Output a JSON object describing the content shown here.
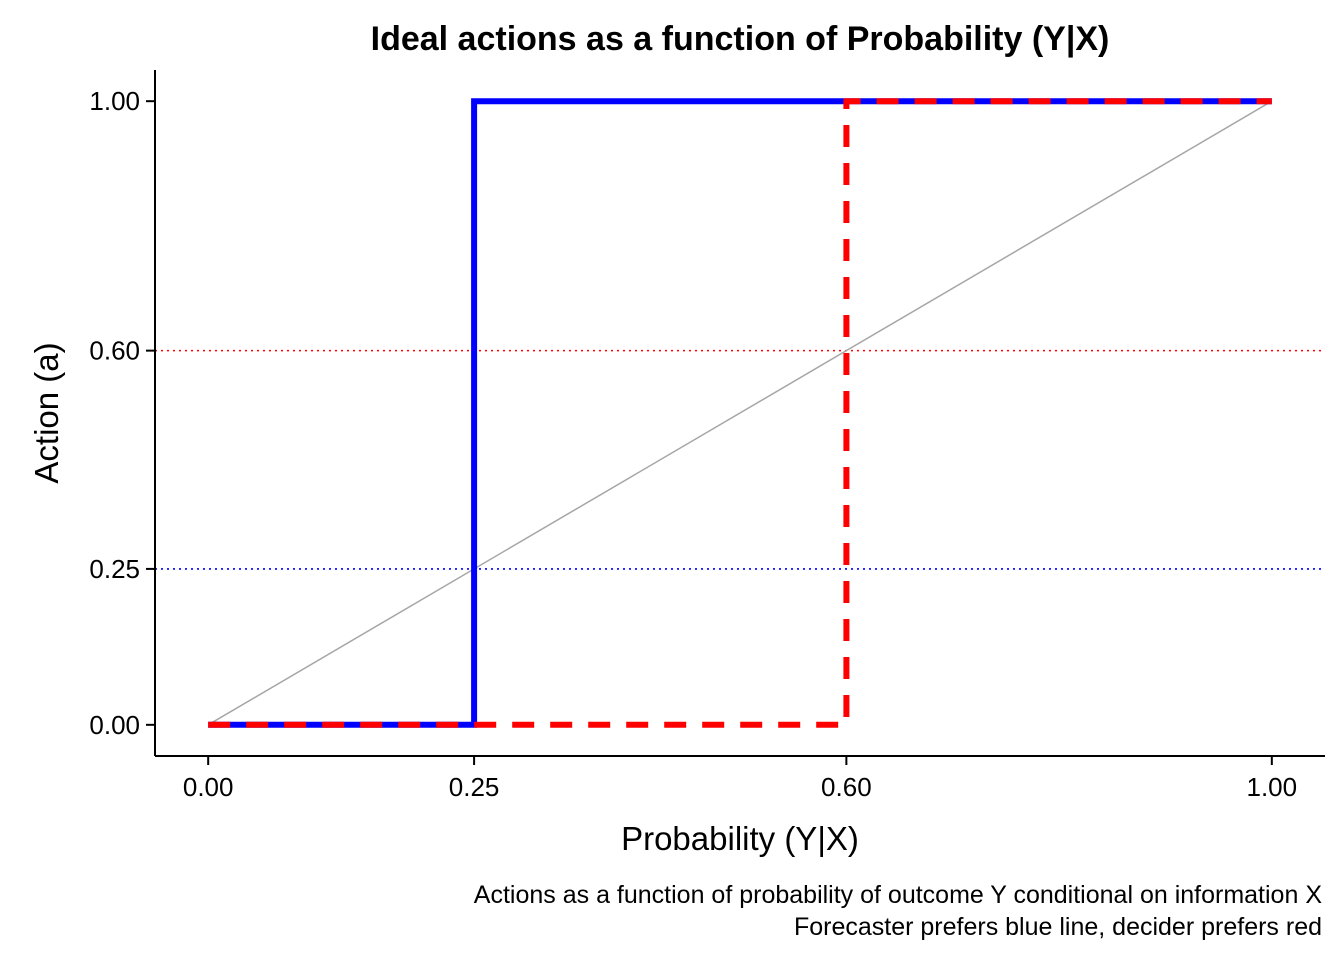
{
  "chart_data": {
    "type": "line",
    "title": "Ideal actions as a function of Probability (Y|X)",
    "xlabel": "Probability (Y|X)",
    "ylabel": "Action (a)",
    "caption_lines": [
      "Actions as a function of probability of outcome Y conditional on information X",
      "Forecaster prefers blue line, decider prefers red"
    ],
    "xlim": [
      -0.05,
      1.05
    ],
    "ylim": [
      -0.05,
      1.05
    ],
    "x_ticks": [
      0.0,
      0.25,
      0.6,
      1.0
    ],
    "x_tick_labels": [
      "0.00",
      "0.25",
      "0.60",
      "1.00"
    ],
    "y_ticks": [
      0.0,
      0.25,
      0.6,
      1.0
    ],
    "y_tick_labels": [
      "0.00",
      "0.25",
      "0.60",
      "1.00"
    ],
    "grid": false,
    "reference_lines": [
      {
        "orientation": "horizontal",
        "y": 0.6,
        "color": "#ff0000",
        "style": "dotted"
      },
      {
        "orientation": "horizontal",
        "y": 0.25,
        "color": "#0000ff",
        "style": "dotted"
      }
    ],
    "series": [
      {
        "id": "identity",
        "color": "#a6a6a6",
        "style": "solid",
        "x": [
          0.0,
          1.0
        ],
        "y": [
          0.0,
          1.0
        ]
      },
      {
        "id": "forecaster",
        "color": "#0000ff",
        "style": "solid",
        "x": [
          0.0,
          0.25,
          0.25,
          1.0
        ],
        "y": [
          0.0,
          0.0,
          1.0,
          1.0
        ]
      },
      {
        "id": "decider",
        "color": "#ff0000",
        "style": "dashed",
        "x": [
          0.0,
          0.6,
          0.6,
          1.0
        ],
        "y": [
          0.0,
          0.0,
          1.0,
          1.0
        ]
      }
    ]
  }
}
